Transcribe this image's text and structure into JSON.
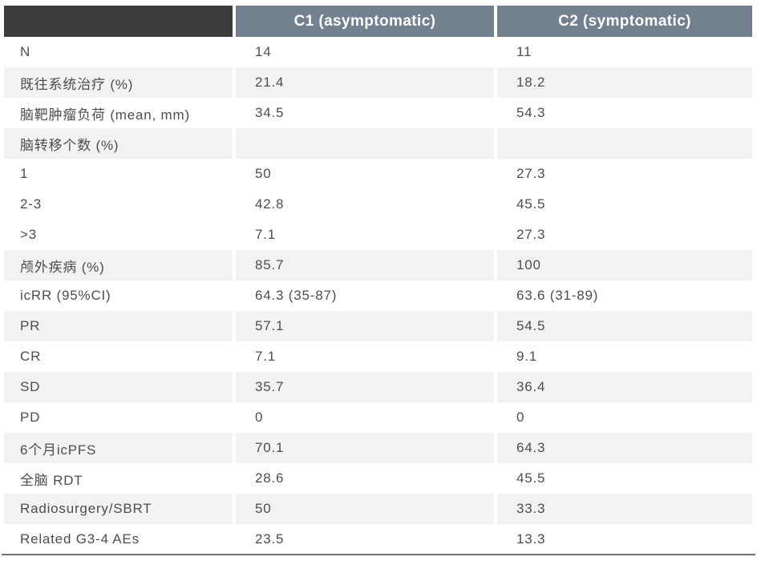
{
  "chart_data": {
    "type": "table",
    "columns": [
      "",
      "C1 (asymptomatic)",
      "C2 (symptomatic)"
    ],
    "rows": [
      {
        "label": "N",
        "c1": "14",
        "c2": "11",
        "shaded": false
      },
      {
        "label": "既往系统治疗 (%)",
        "c1": "21.4",
        "c2": "18.2",
        "shaded": true
      },
      {
        "label": "脑靶肿瘤负荷 (mean, mm)",
        "c1": "34.5",
        "c2": "54.3",
        "shaded": false
      },
      {
        "label": "脑转移个数 (%)",
        "c1": "",
        "c2": "",
        "shaded": true
      },
      {
        "label": "1",
        "c1": "50",
        "c2": "27.3",
        "shaded": false
      },
      {
        "label": "2-3",
        "c1": "42.8",
        "c2": "45.5",
        "shaded": false
      },
      {
        "label": ">3",
        "c1": "7.1",
        "c2": "27.3",
        "shaded": false
      },
      {
        "label": "颅外疾病 (%)",
        "c1": "85.7",
        "c2": "100",
        "shaded": true
      },
      {
        "label": "icRR (95%CI)",
        "c1": "64.3 (35-87)",
        "c2": "63.6 (31-89)",
        "shaded": false
      },
      {
        "label": "PR",
        "c1": "57.1",
        "c2": "54.5",
        "shaded": true
      },
      {
        "label": "CR",
        "c1": "7.1",
        "c2": "9.1",
        "shaded": false
      },
      {
        "label": "SD",
        "c1": "35.7",
        "c2": "36.4",
        "shaded": true
      },
      {
        "label": "PD",
        "c1": "0",
        "c2": "0",
        "shaded": false
      },
      {
        "label": "6个月icPFS",
        "c1": "70.1",
        "c2": "64.3",
        "shaded": true
      },
      {
        "label": "全脑 RDT",
        "c1": "28.6",
        "c2": "45.5",
        "shaded": false
      },
      {
        "label": "Radiosurgery/SBRT",
        "c1": "50",
        "c2": "33.3",
        "shaded": true
      },
      {
        "label": "Related G3-4 AEs",
        "c1": "23.5",
        "c2": "13.3",
        "shaded": false
      }
    ]
  },
  "colors": {
    "corner_bg": "#3c3c3c",
    "header_bg": "#73808f",
    "header_text": "#ffffff",
    "shaded_row_bg": "#f2f2f2",
    "row_bg": "#ffffff",
    "text": "#4d4d4d",
    "bottom_rule": "#6e737a",
    "page_bg": "#ffffff"
  }
}
